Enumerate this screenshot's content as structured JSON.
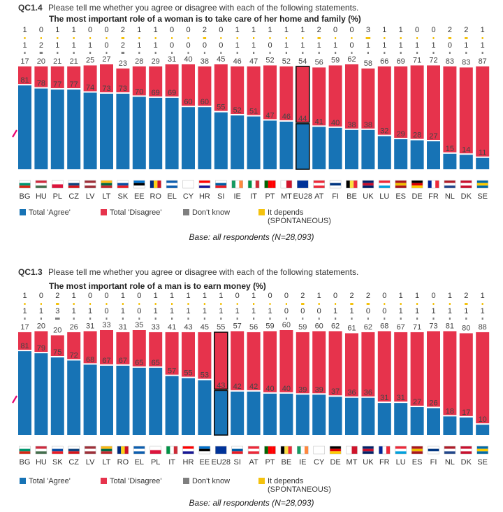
{
  "colors": {
    "agree": "#1773b5",
    "disagree": "#e6334c",
    "dontknow": "#7f7f7f",
    "depends": "#f4c20d",
    "arrow": "#e8006f"
  },
  "legend": {
    "agree": "Total 'Agree'",
    "disagree": "Total 'Disagree'",
    "dontknow": "Don't know",
    "depends_line1": "It depends",
    "depends_line2": "(SPONTANEOUS)"
  },
  "panels": [
    {
      "qcode": "QC1.4",
      "question": "Please tell me whether you agree or disagree with each of the following statements.",
      "statement": "The most important role of a woman is to take care of her home and family",
      "unit": "(%)",
      "base": "Base: all respondents (N=28,093)"
    },
    {
      "qcode": "QC1.3",
      "question": "Please tell me whether you agree or disagree with each of the following statements.",
      "statement": "The most important role of a man is to earn money",
      "unit": "(%)",
      "base": "Base: all respondents (N=28,093)"
    }
  ],
  "chart_data": [
    {
      "type": "bar",
      "title": "The most important role of a woman is to take care of her home and family (%)",
      "categories": [
        "BG",
        "HU",
        "PL",
        "CZ",
        "LV",
        "LT",
        "SK",
        "EE",
        "RO",
        "EL",
        "CY",
        "HR",
        "SI",
        "IE",
        "IT",
        "PT",
        "MT",
        "EU28",
        "AT",
        "FI",
        "BE",
        "UK",
        "LU",
        "ES",
        "DE",
        "FR",
        "NL",
        "DK",
        "SE"
      ],
      "highlight": "EU28",
      "ylim": [
        0,
        100
      ],
      "series": [
        {
          "name": "Total 'Agree'",
          "values": [
            81,
            78,
            77,
            77,
            74,
            73,
            73,
            70,
            69,
            69,
            60,
            60,
            55,
            52,
            51,
            47,
            46,
            44,
            41,
            40,
            38,
            38,
            32,
            29,
            28,
            27,
            15,
            14,
            11
          ]
        },
        {
          "name": "Total 'Disagree'",
          "values": [
            17,
            20,
            21,
            21,
            25,
            27,
            23,
            28,
            29,
            31,
            40,
            38,
            45,
            46,
            47,
            52,
            52,
            54,
            56,
            59,
            62,
            58,
            66,
            69,
            71,
            72,
            83,
            83,
            87
          ]
        },
        {
          "name": "Don't know",
          "values": [
            1,
            2,
            1,
            1,
            1,
            0,
            2,
            1,
            1,
            0,
            0,
            0,
            0,
            1,
            1,
            0,
            1,
            1,
            1,
            1,
            0,
            1,
            1,
            1,
            1,
            1,
            0,
            1,
            1
          ]
        },
        {
          "name": "It depends",
          "values": [
            1,
            0,
            1,
            1,
            0,
            0,
            2,
            1,
            1,
            0,
            0,
            2,
            0,
            1,
            1,
            1,
            1,
            1,
            2,
            0,
            0,
            3,
            1,
            1,
            0,
            0,
            2,
            2,
            1
          ]
        }
      ]
    },
    {
      "type": "bar",
      "title": "The most important role of a man is to earn money (%)",
      "categories": [
        "BG",
        "HU",
        "SK",
        "CZ",
        "LV",
        "LT",
        "RO",
        "EL",
        "PL",
        "IT",
        "HR",
        "EE",
        "EU28",
        "SI",
        "AT",
        "PT",
        "BE",
        "IE",
        "CY",
        "DE",
        "MT",
        "UK",
        "FR",
        "LU",
        "ES",
        "FI",
        "NL",
        "DK",
        "SE"
      ],
      "highlight": "EU28",
      "ylim": [
        0,
        100
      ],
      "series": [
        {
          "name": "Total 'Agree'",
          "values": [
            81,
            79,
            75,
            72,
            68,
            67,
            67,
            65,
            65,
            57,
            55,
            53,
            43,
            42,
            42,
            40,
            40,
            39,
            39,
            37,
            36,
            36,
            31,
            31,
            27,
            26,
            18,
            17,
            10
          ]
        },
        {
          "name": "Total 'Disagree'",
          "values": [
            17,
            20,
            20,
            26,
            31,
            33,
            31,
            35,
            33,
            41,
            43,
            45,
            55,
            57,
            56,
            59,
            60,
            59,
            60,
            62,
            61,
            62,
            68,
            67,
            71,
            73,
            81,
            80,
            88
          ]
        },
        {
          "name": "Don't know",
          "values": [
            1,
            1,
            3,
            1,
            1,
            0,
            1,
            0,
            1,
            1,
            1,
            1,
            1,
            1,
            1,
            1,
            0,
            0,
            0,
            1,
            1,
            0,
            0,
            1,
            1,
            1,
            1,
            1,
            1
          ]
        },
        {
          "name": "It depends",
          "values": [
            1,
            0,
            2,
            1,
            0,
            0,
            1,
            0,
            1,
            1,
            1,
            1,
            1,
            0,
            1,
            0,
            0,
            2,
            1,
            0,
            2,
            2,
            0,
            1,
            1,
            0,
            1,
            2,
            1
          ]
        }
      ]
    }
  ]
}
